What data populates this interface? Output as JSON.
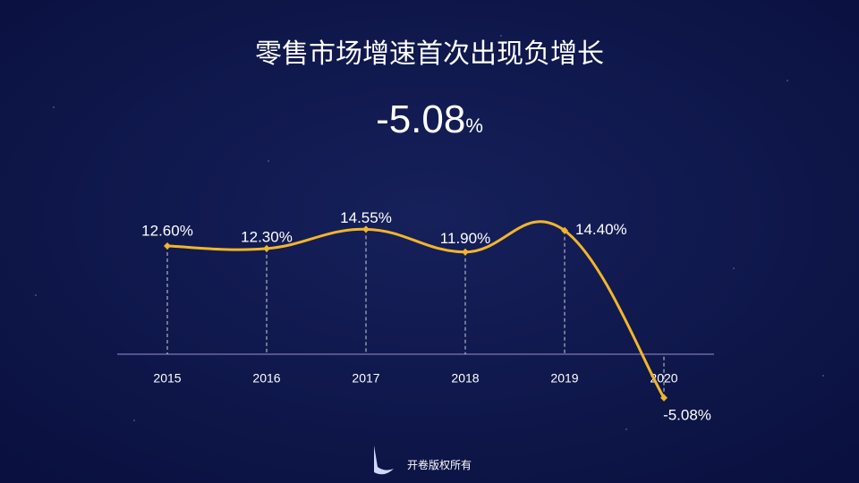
{
  "chart_data": {
    "type": "line",
    "title": "零售市场增速首次出现负增长",
    "headline": "-5.08",
    "headline_unit": "%",
    "categories": [
      "2015",
      "2016",
      "2017",
      "2018",
      "2019",
      "2020"
    ],
    "series": [
      {
        "name": "零售市场增速",
        "color": "#f2b52c",
        "values": [
          12.6,
          12.3,
          14.55,
          11.9,
          14.4,
          -5.08
        ],
        "value_labels": [
          "12.60%",
          "12.30%",
          "14.55%",
          "11.90%",
          "14.40%",
          "-5.08%"
        ]
      }
    ],
    "footer": "开卷版权所有"
  }
}
